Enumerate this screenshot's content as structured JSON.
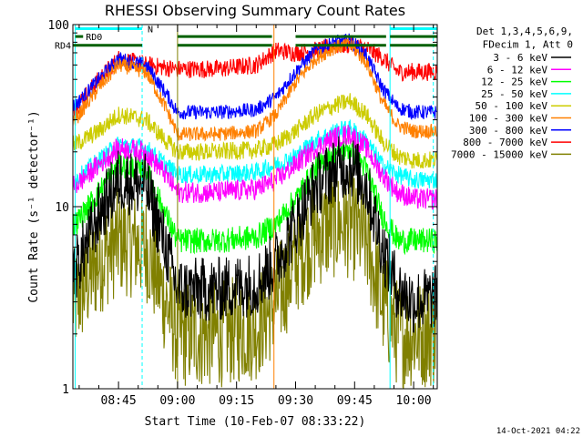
{
  "chart_data": {
    "type": "line",
    "title": "RHESSI Observing Summary Count Rates",
    "xlabel": "Start Time (10-Feb-07 08:33:22)",
    "ylabel": "Count Rate (s⁻¹ detector⁻¹)",
    "yscale": "log",
    "ylim": [
      1,
      100
    ],
    "xlim_minutes": [
      33.4,
      126
    ],
    "x_ticks": [
      {
        "minute": 45,
        "label": "08:45"
      },
      {
        "minute": 60,
        "label": "09:00"
      },
      {
        "minute": 75,
        "label": "09:15"
      },
      {
        "minute": 90,
        "label": "09:30"
      },
      {
        "minute": 105,
        "label": "09:45"
      },
      {
        "minute": 120,
        "label": "10:00"
      }
    ],
    "y_ticks": [
      {
        "value": 1,
        "label": "1"
      },
      {
        "value": 10,
        "label": "10"
      },
      {
        "value": 100,
        "label": "100"
      }
    ],
    "legend": {
      "header": [
        "Det 1,3,4,5,6,9,",
        "FDecim 1, Att 0"
      ],
      "placement": "right"
    },
    "series": [
      {
        "name": "3 - 6 keV",
        "color": "#000000",
        "x": [
          34,
          40,
          45,
          52,
          57,
          60,
          70,
          80,
          85,
          90,
          95,
          100,
          104,
          108,
          112,
          116,
          120,
          126
        ],
        "y": [
          4.5,
          9,
          14,
          13,
          6,
          3.5,
          3.5,
          3.8,
          5,
          8,
          13,
          16,
          17,
          13,
          6,
          3.5,
          3,
          3.2
        ],
        "noise": 0.18
      },
      {
        "name": "6 - 12 keV",
        "color": "#ff00ff",
        "x": [
          34,
          40,
          45,
          52,
          57,
          60,
          70,
          80,
          85,
          90,
          95,
          100,
          104,
          108,
          112,
          116,
          120,
          126
        ],
        "y": [
          13,
          17,
          21,
          20,
          15,
          12,
          12,
          12.5,
          14,
          17,
          21,
          24,
          25,
          21,
          15,
          12,
          11,
          11
        ],
        "noise": 0.06
      },
      {
        "name": "12 - 25 keV",
        "color": "#00ff00",
        "x": [
          34,
          40,
          45,
          52,
          57,
          60,
          70,
          80,
          85,
          90,
          95,
          100,
          104,
          108,
          112,
          116,
          120,
          126
        ],
        "y": [
          8,
          12,
          17,
          16,
          9,
          6.5,
          6.5,
          6.8,
          8,
          11,
          16,
          20,
          21,
          16,
          9,
          6.5,
          6.5,
          6.5
        ],
        "noise": 0.07
      },
      {
        "name": "25 - 50 keV",
        "color": "#00ffff",
        "x": [
          34,
          40,
          45,
          52,
          57,
          60,
          70,
          80,
          85,
          90,
          95,
          100,
          104,
          108,
          112,
          116,
          120,
          126
        ],
        "y": [
          14,
          18,
          22,
          21,
          17,
          15,
          15,
          15.5,
          17,
          19,
          23,
          26,
          27,
          23,
          17,
          15,
          14,
          14
        ],
        "noise": 0.05
      },
      {
        "name": "50 - 100 keV",
        "color": "#cccc00",
        "x": [
          34,
          40,
          45,
          52,
          57,
          60,
          70,
          80,
          85,
          90,
          95,
          100,
          104,
          108,
          112,
          116,
          120,
          126
        ],
        "y": [
          22,
          26,
          32,
          30,
          23,
          20,
          20,
          20.5,
          22,
          26,
          32,
          36,
          38,
          32,
          23,
          19,
          18,
          18
        ],
        "noise": 0.05
      },
      {
        "name": "100 - 300 keV",
        "color": "#ff8000",
        "x": [
          34,
          40,
          45,
          52,
          57,
          60,
          70,
          80,
          85,
          90,
          95,
          100,
          104,
          108,
          112,
          116,
          120,
          126
        ],
        "y": [
          30,
          45,
          60,
          55,
          35,
          25,
          25,
          26,
          32,
          48,
          65,
          75,
          77,
          62,
          38,
          28,
          26,
          26
        ],
        "noise": 0.04
      },
      {
        "name": "300 - 800 keV",
        "color": "#0000ff",
        "x": [
          34,
          40,
          45,
          52,
          57,
          60,
          70,
          80,
          85,
          90,
          95,
          100,
          104,
          108,
          112,
          116,
          120,
          126
        ],
        "y": [
          36,
          50,
          65,
          60,
          42,
          33,
          33,
          34,
          40,
          55,
          72,
          80,
          82,
          68,
          45,
          35,
          33,
          33
        ],
        "noise": 0.04
      },
      {
        "name": "800 - 7000 keV",
        "color": "#ff0000",
        "x": [
          34,
          40,
          45,
          52,
          57,
          60,
          70,
          80,
          85,
          90,
          95,
          100,
          104,
          108,
          112,
          116,
          120,
          126
        ],
        "y": [
          35,
          50,
          65,
          60,
          58,
          57,
          57,
          60,
          72,
          70,
          72,
          76,
          78,
          74,
          66,
          55,
          55,
          55
        ],
        "noise": 0.05
      },
      {
        "name": "7000 - 15000 keV",
        "color": "#808000",
        "x": [
          34,
          40,
          45,
          52,
          57,
          60,
          70,
          80,
          85,
          90,
          95,
          100,
          104,
          108,
          112,
          116,
          120,
          126
        ],
        "y": [
          3,
          5,
          6.5,
          6,
          3,
          2,
          2,
          2.2,
          3,
          5,
          7,
          8,
          8,
          6.5,
          3,
          2,
          2,
          2
        ],
        "noise": 0.3
      }
    ],
    "annotations": [
      {
        "text": "N",
        "color": "#00ffff",
        "x_range": [
          34,
          51
        ],
        "value": 95
      },
      {
        "text": "RD0",
        "color": "#006000",
        "x_range": [
          34,
          36
        ],
        "value": 86
      },
      {
        "text": "RD4",
        "color": "#006000",
        "x_range": [
          33.4,
          126
        ],
        "value": 77
      }
    ],
    "footer": "14-Oct-2021 04:22"
  }
}
